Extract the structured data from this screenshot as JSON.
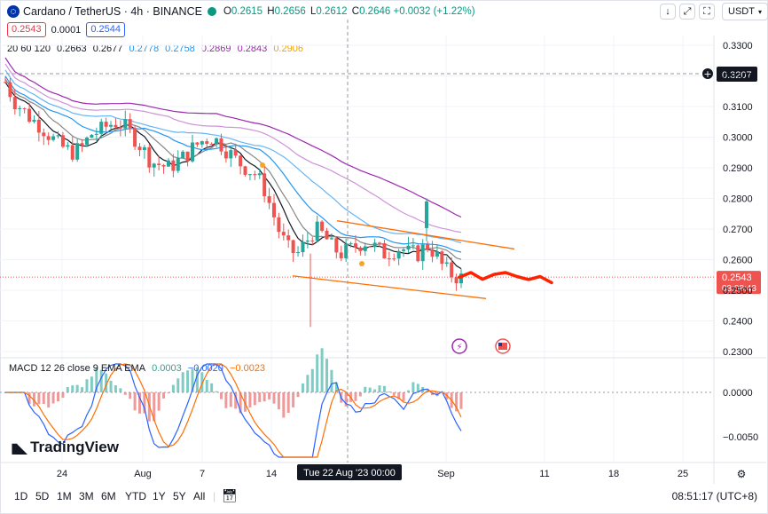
{
  "header": {
    "symbol": "Cardano / TetherUS · 4h · BINANCE",
    "ohlc": [
      {
        "k": "O",
        "v": "0.2615"
      },
      {
        "k": "H",
        "v": "0.2656"
      },
      {
        "k": "L",
        "v": "0.2612"
      },
      {
        "k": "C",
        "v": "0.2646"
      }
    ],
    "change": "+0.0032 (+1.22%)",
    "change_color": "#089981"
  },
  "controls": {
    "down_icon": "↓",
    "expand_icon": "⤢",
    "fullscreen_icon": "⛶",
    "currency": "USDT"
  },
  "price_boxes": {
    "sell": "0.2543",
    "spread": "0.0001",
    "buy": "0.2544"
  },
  "ma_indicator": {
    "label": "20 60 120",
    "values": [
      {
        "text": "0.2663",
        "color": "#131722"
      },
      {
        "text": "0.2677",
        "color": "#131722"
      },
      {
        "text": "0.2778",
        "color": "#2196f3"
      },
      {
        "text": "0.2758",
        "color": "#2196f3"
      },
      {
        "text": "0.2869",
        "color": "#9c27b0"
      },
      {
        "text": "0.2843",
        "color": "#9c27b0"
      },
      {
        "text": "0.2906",
        "color": "#f0a30a"
      }
    ]
  },
  "price_axis": {
    "ticks": [
      "0.3300",
      "0.3200",
      "0.3100",
      "0.3000",
      "0.2900",
      "0.2800",
      "0.2700",
      "0.2600",
      "0.2500",
      "0.2400",
      "0.2300"
    ],
    "crosshair_price": "0.3207",
    "last_price": "0.2543",
    "countdown": "03:08:43"
  },
  "macd": {
    "label": "MACD 12 26 close 9 EMA EMA",
    "values": [
      {
        "text": "0.0003",
        "color": "#26a69a"
      },
      {
        "text": "−0.0020",
        "color": "#2962ff"
      },
      {
        "text": "−0.0023",
        "color": "#ff6d00"
      }
    ],
    "ticks": [
      "0.0000",
      "−0.0050"
    ]
  },
  "time_axis": {
    "labels": [
      "24",
      "Aug",
      "7",
      "14",
      "Sep",
      "11",
      "18",
      "25"
    ],
    "crosshair_date": "Tue 22 Aug '23   00:00"
  },
  "timeframes": [
    "1D",
    "5D",
    "1M",
    "3M",
    "6M",
    "YTD",
    "1Y",
    "5Y",
    "All"
  ],
  "clock": "08:51:17 (UTC+8)",
  "brand": "TradingView",
  "colors": {
    "up": "#26a69a",
    "down": "#ef5350",
    "forecast": "#ff2200",
    "channel": "#ff6d00"
  },
  "chart_data": {
    "type": "candlestick",
    "title": "Cardano / TetherUS · 4h · BINANCE",
    "x_labels": [
      "24",
      "Aug",
      "7",
      "14",
      "Sep",
      "11",
      "18",
      "25"
    ],
    "ylim": [
      0.228,
      0.335
    ],
    "series": [
      {
        "name": "MA 20",
        "color": "#131722"
      },
      {
        "name": "MA 60",
        "color": "#2196f3"
      },
      {
        "name": "MA 120",
        "color": "#9c27b0"
      }
    ],
    "close_path": [
      0.318,
      0.312,
      0.309,
      0.306,
      0.304,
      0.301,
      0.298,
      0.296,
      0.295,
      0.297,
      0.301,
      0.302,
      0.304,
      0.305,
      0.303,
      0.3,
      0.296,
      0.292,
      0.291,
      0.29,
      0.292,
      0.294,
      0.297,
      0.299,
      0.3,
      0.298,
      0.295,
      0.292,
      0.29,
      0.288,
      0.284,
      0.276,
      0.268,
      0.263,
      0.262,
      0.266,
      0.27,
      0.268,
      0.264,
      0.262,
      0.263,
      0.265,
      0.266,
      0.264,
      0.262,
      0.263,
      0.264,
      0.262,
      0.262,
      0.265,
      0.262,
      0.257,
      0.255,
      0.254
    ],
    "forecast": [
      0.2543,
      0.2558,
      0.2536,
      0.2552,
      0.2558,
      0.2545,
      0.2535,
      0.2545,
      0.2525
    ]
  }
}
